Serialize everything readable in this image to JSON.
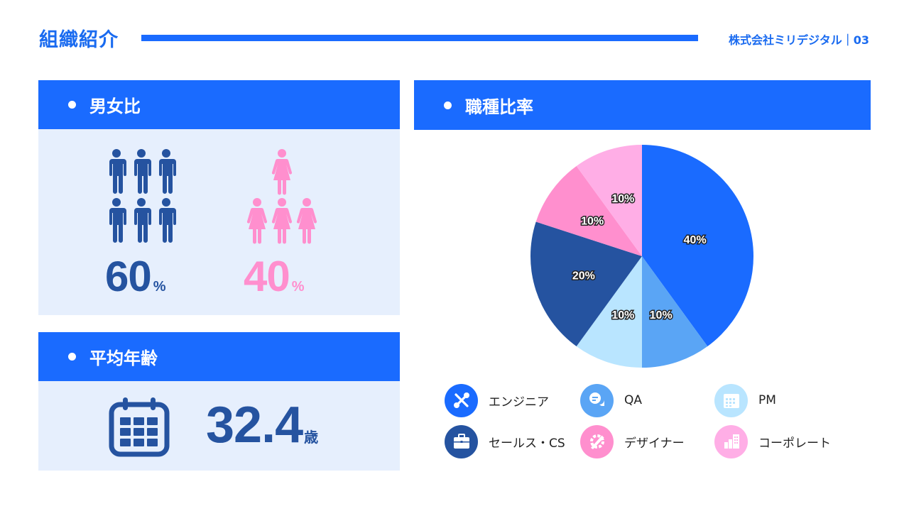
{
  "header": {
    "title": "組織紹介",
    "company": "株式会社ミリデジタル｜03",
    "accent_color": "#1a6bff"
  },
  "gender": {
    "heading": "男女比",
    "male": {
      "value": "60",
      "unit": "%",
      "icon_count": 6,
      "color": "#2553a0",
      "icon": "male-person-icon"
    },
    "female": {
      "value": "40",
      "unit": "%",
      "icon_count": 4,
      "color": "#ff8fce",
      "icon": "female-person-icon"
    }
  },
  "age": {
    "heading": "平均年齢",
    "value": "32.4",
    "unit": "歳",
    "icon": "calendar-icon"
  },
  "job": {
    "heading": "職種比率",
    "legend": [
      {
        "label": "エンジニア",
        "color": "#1a6bff",
        "icon": "tools-icon"
      },
      {
        "label": "QA",
        "color": "#5aa5f5",
        "icon": "chat-bubbles-icon"
      },
      {
        "label": "PM",
        "color": "#b9e5ff",
        "icon": "calendar-icon"
      },
      {
        "label": "セールス・CS",
        "color": "#2553a0",
        "icon": "briefcase-icon"
      },
      {
        "label": "デザイナー",
        "color": "#ff8fce",
        "icon": "design-tools-icon"
      },
      {
        "label": "コーポレート",
        "color": "#ffaee6",
        "icon": "building-icon"
      }
    ]
  },
  "chart_data": {
    "type": "pie",
    "title": "職種比率",
    "categories": [
      "エンジニア",
      "QA",
      "PM",
      "セールス・CS",
      "デザイナー",
      "コーポレート"
    ],
    "values": [
      40,
      10,
      10,
      20,
      10,
      10
    ],
    "labels": [
      "40%",
      "10%",
      "10%",
      "20%",
      "10%",
      "10%"
    ],
    "colors": [
      "#1a6bff",
      "#5aa5f5",
      "#b9e5ff",
      "#2553a0",
      "#ff8fce",
      "#ffaee6"
    ],
    "start_angle": "12 o'clock, clockwise",
    "legend_position": "bottom"
  }
}
